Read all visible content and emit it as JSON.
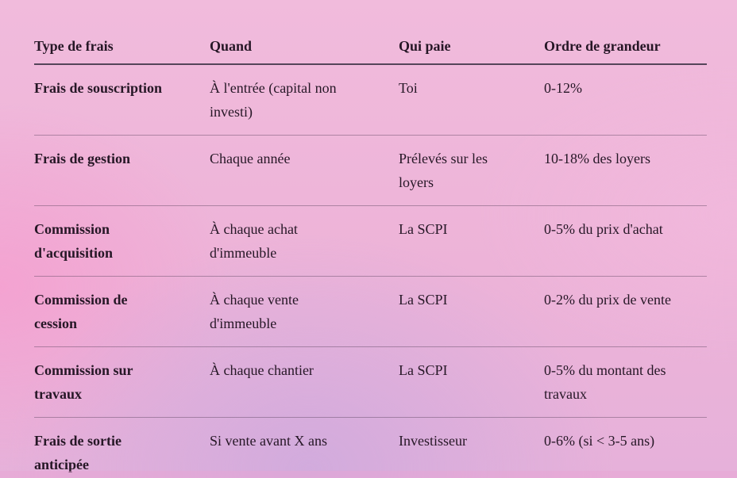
{
  "colors": {
    "background_pink": "#f1bbdc",
    "background_pink_strong": "#f5a0d0",
    "background_lavender": "#d2abdd",
    "text": "#261726",
    "header_rule": "#55455a",
    "row_rule": "#8f7a93"
  },
  "table": {
    "columns": [
      {
        "label": "Type de frais"
      },
      {
        "label": "Quand"
      },
      {
        "label": "Qui paie"
      },
      {
        "label": "Ordre de grandeur"
      }
    ],
    "rows": [
      {
        "cells": [
          "Frais de souscription",
          "À l'entrée (capital non\ninvesti)",
          "Toi",
          "0-12%"
        ]
      },
      {
        "cells": [
          "Frais de gestion",
          "Chaque année",
          "Prélevés sur les\nloyers",
          "10-18% des loyers"
        ]
      },
      {
        "cells": [
          "Commission\nd'acquisition",
          "À chaque achat\nd'immeuble",
          "La SCPI",
          "0-5% du prix d'achat"
        ]
      },
      {
        "cells": [
          "Commission de\ncession",
          "À chaque vente\nd'immeuble",
          "La SCPI",
          "0-2% du prix de vente"
        ]
      },
      {
        "cells": [
          "Commission sur\ntravaux",
          "À chaque chantier",
          "La SCPI",
          "0-5% du montant des\ntravaux"
        ]
      },
      {
        "cells": [
          "Frais de sortie\nanticipée",
          "Si vente avant X ans",
          "Investisseur",
          "0-6% (si < 3-5 ans)"
        ]
      }
    ]
  }
}
